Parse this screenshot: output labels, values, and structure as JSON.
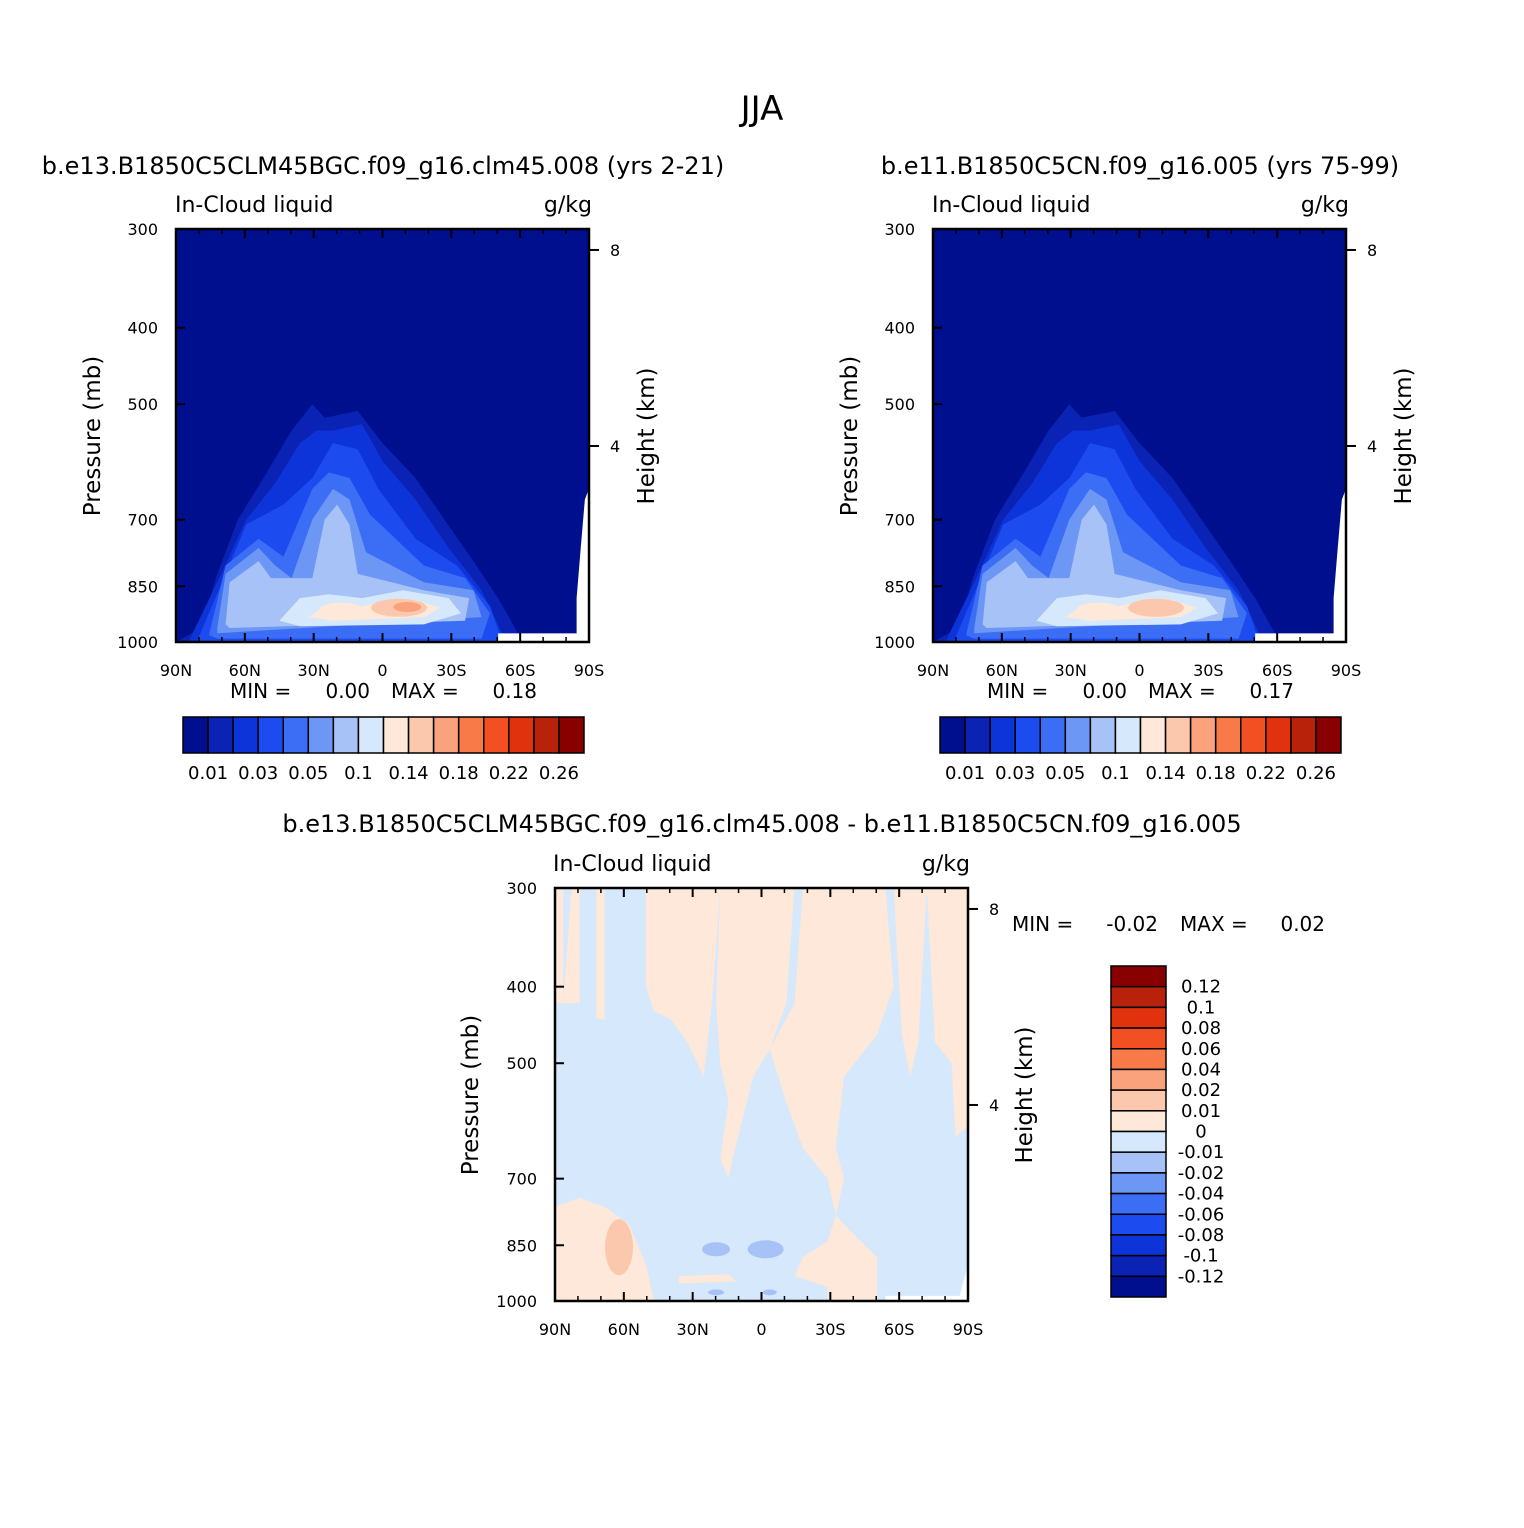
{
  "figure_title": "JJA",
  "chart_data": [
    {
      "type": "heatmap",
      "title": "b.e13.B1850C5CLM45BGC.f09_g16.clm45.008 (yrs 2-21)",
      "left_string": "In-Cloud liquid",
      "units": "g/kg",
      "xlabel": "",
      "ylabel": "Pressure (mb)",
      "ylabel_right": "Height (km)",
      "x_ticks": [
        "90N",
        "60N",
        "30N",
        "0",
        "30S",
        "60S",
        "90S"
      ],
      "y_ticks": [
        "300",
        "400",
        "500",
        "700",
        "850",
        "1000"
      ],
      "y_right_ticks": [
        "8",
        "4"
      ],
      "ylim": [
        1000,
        300
      ],
      "min_label": "MIN =",
      "min_value": "0.00",
      "max_label": "MAX =",
      "max_value": "0.18",
      "colorbar_labels": [
        "0.01",
        "0.03",
        "0.05",
        "0.1",
        "0.14",
        "0.18",
        "0.22",
        "0.26"
      ],
      "colorbar_levels": [
        0.01,
        0.02,
        0.03,
        0.04,
        0.05,
        0.07,
        0.1,
        0.12,
        0.14,
        0.16,
        0.18,
        0.2,
        0.22,
        0.24,
        0.26
      ],
      "peak_value": 0.18
    },
    {
      "type": "heatmap",
      "title": "b.e11.B1850C5CN.f09_g16.005 (yrs 75-99)",
      "left_string": "In-Cloud liquid",
      "units": "g/kg",
      "xlabel": "",
      "ylabel": "Pressure (mb)",
      "ylabel_right": "Height (km)",
      "x_ticks": [
        "90N",
        "60N",
        "30N",
        "0",
        "30S",
        "60S",
        "90S"
      ],
      "y_ticks": [
        "300",
        "400",
        "500",
        "700",
        "850",
        "1000"
      ],
      "y_right_ticks": [
        "8",
        "4"
      ],
      "ylim": [
        1000,
        300
      ],
      "min_label": "MIN =",
      "min_value": "0.00",
      "max_label": "MAX =",
      "max_value": "0.17",
      "colorbar_labels": [
        "0.01",
        "0.03",
        "0.05",
        "0.1",
        "0.14",
        "0.18",
        "0.22",
        "0.26"
      ],
      "colorbar_levels": [
        0.01,
        0.02,
        0.03,
        0.04,
        0.05,
        0.07,
        0.1,
        0.12,
        0.14,
        0.16,
        0.18,
        0.2,
        0.22,
        0.24,
        0.26
      ],
      "peak_value": 0.17
    },
    {
      "type": "heatmap",
      "title": "b.e13.B1850C5CLM45BGC.f09_g16.clm45.008 - b.e11.B1850C5CN.f09_g16.005",
      "left_string": "In-Cloud liquid",
      "units": "g/kg",
      "xlabel": "",
      "ylabel": "Pressure (mb)",
      "ylabel_right": "Height (km)",
      "x_ticks": [
        "90N",
        "60N",
        "30N",
        "0",
        "30S",
        "60S",
        "90S"
      ],
      "y_ticks": [
        "300",
        "400",
        "500",
        "700",
        "850",
        "1000"
      ],
      "y_right_ticks": [
        "8",
        "4"
      ],
      "ylim": [
        1000,
        300
      ],
      "min_label": "MIN =",
      "min_value": "-0.02",
      "max_label": "MAX =",
      "max_value": "0.02",
      "colorbar_labels": [
        "0.12",
        "0.1",
        "0.08",
        "0.06",
        "0.04",
        "0.02",
        "0.01",
        "0",
        "-0.01",
        "-0.02",
        "-0.04",
        "-0.06",
        "-0.08",
        "-0.1",
        "-0.12"
      ]
    }
  ],
  "colors": {
    "seq": [
      "#000f8e",
      "#0a23b4",
      "#0d34d8",
      "#1c4bf0",
      "#3b6ef5",
      "#6d97f4",
      "#a6c2f7",
      "#d6e8fb",
      "#fde8d9",
      "#fcc8ad",
      "#f9a27c",
      "#f87a48",
      "#f25023",
      "#e0330d",
      "#b8220a",
      "#880000"
    ],
    "diff": [
      "#880000",
      "#b8220a",
      "#e0330d",
      "#f25023",
      "#f87a48",
      "#f9a27c",
      "#fcc8ad",
      "#fde8d9",
      "#d6e8fb",
      "#a6c2f7",
      "#6d97f4",
      "#3b6ef5",
      "#1c4bf0",
      "#0d34d8",
      "#0a23b4",
      "#000f8e"
    ]
  }
}
